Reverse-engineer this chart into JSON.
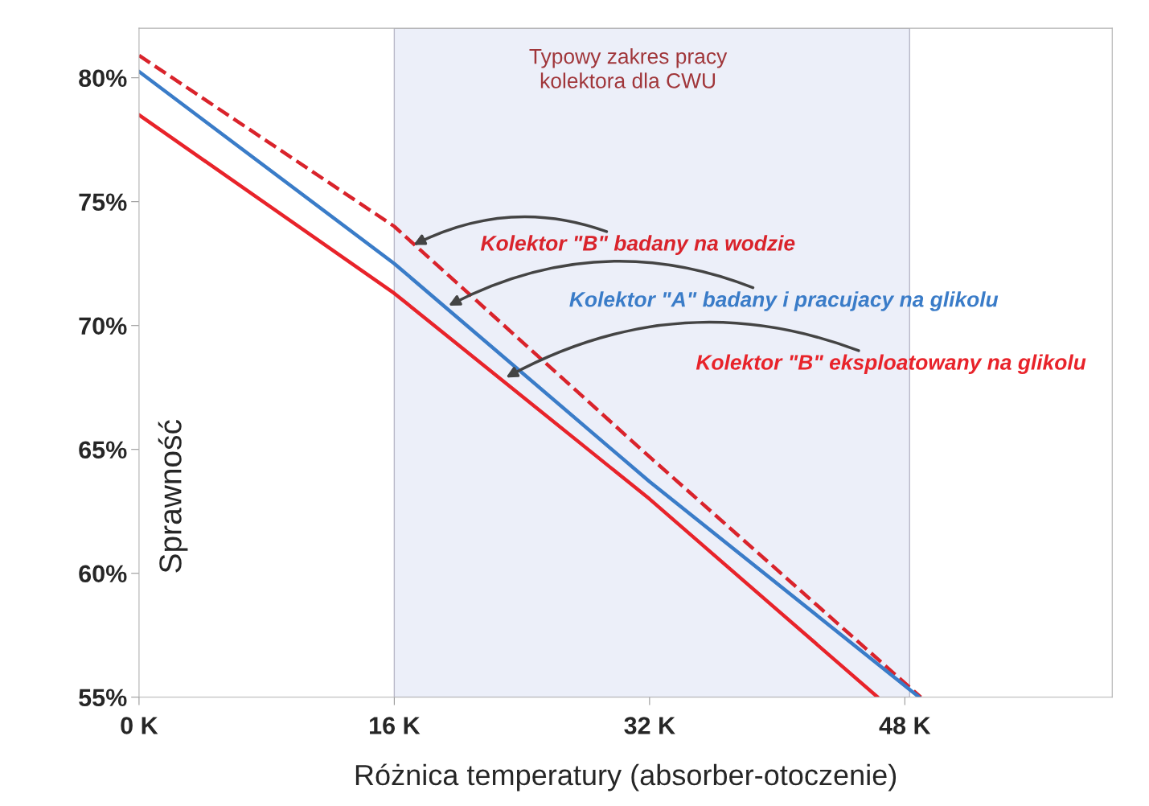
{
  "chart_data": {
    "type": "line",
    "xlabel": "Różnica temperatury (absorber-otoczenie)",
    "ylabel": "Sprawność",
    "xlim": [
      0,
      61
    ],
    "ylim": [
      55,
      82
    ],
    "xticks": [
      {
        "value": 0,
        "label": "0 K"
      },
      {
        "value": 16,
        "label": "16 K"
      },
      {
        "value": 32,
        "label": "32 K"
      },
      {
        "value": 48,
        "label": "48 K"
      }
    ],
    "yticks": [
      {
        "value": 55,
        "label": "55%"
      },
      {
        "value": 60,
        "label": "60%"
      },
      {
        "value": 65,
        "label": "65%"
      },
      {
        "value": 70,
        "label": "70%"
      },
      {
        "value": 75,
        "label": "75%"
      },
      {
        "value": 80,
        "label": "80%"
      }
    ],
    "grid": false,
    "legend": false,
    "marker": "none",
    "bands": [
      {
        "axis": "x",
        "from": 16,
        "to": 48.3,
        "label": "Typowy zakres pracy\nkolektora dla CWU",
        "color": "#eceff9"
      }
    ],
    "series": [
      {
        "color": "#d9232b",
        "line_style": "dashed",
        "x": [
          0,
          16,
          32,
          49
        ],
        "values": [
          80.9,
          74.0,
          64.7,
          55
        ]
      },
      {
        "color": "#3a7cc8",
        "line_style": "solid",
        "x": [
          0,
          16,
          32,
          48.9
        ],
        "values": [
          80.25,
          72.5,
          63.7,
          55
        ]
      },
      {
        "color": "#e8232a",
        "line_style": "solid",
        "x": [
          0,
          16,
          32,
          46.3
        ],
        "values": [
          78.5,
          71.3,
          63.0,
          55
        ]
      }
    ],
    "annotations": [
      {
        "text": "Kolektor \"B\" badany na wodzie",
        "x": 17.2,
        "y": 73.25
      },
      {
        "text": "Kolektor \"A\" badany i pracujacy na glikolu",
        "x": 19.4,
        "y": 70.8
      },
      {
        "text": "Kolektor \"B\" eksploatowany na glikolu",
        "x": 23.0,
        "y": 67.9
      }
    ]
  }
}
